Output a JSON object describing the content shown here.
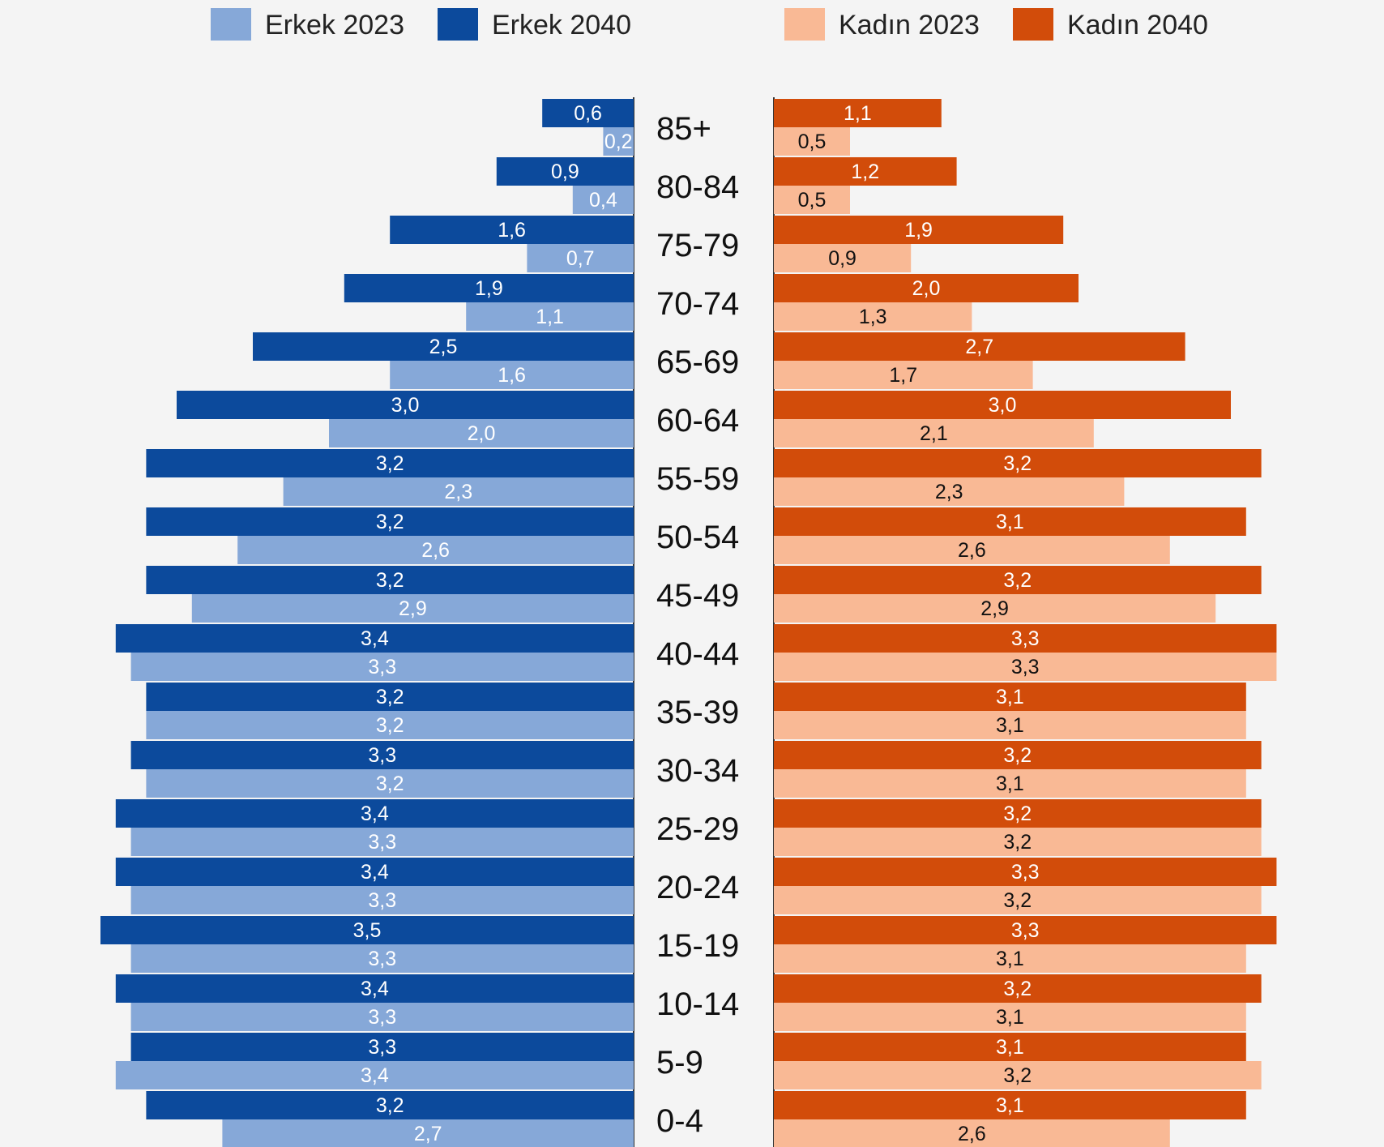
{
  "chart_data": {
    "type": "bar",
    "title": "",
    "xlabel": "",
    "ylabel": "",
    "categories": [
      "85+",
      "80-84",
      "75-79",
      "70-74",
      "65-69",
      "60-64",
      "55-59",
      "50-54",
      "45-49",
      "40-44",
      "35-39",
      "30-34",
      "25-29",
      "20-24",
      "15-19",
      "10-14",
      "5-9",
      "0-4"
    ],
    "series": [
      {
        "name": "Erkek 2040",
        "color": "#0c4a9c",
        "values": [
          0.6,
          0.9,
          1.6,
          1.9,
          2.5,
          3.0,
          3.2,
          3.2,
          3.2,
          3.4,
          3.2,
          3.3,
          3.4,
          3.4,
          3.5,
          3.4,
          3.3,
          3.2
        ]
      },
      {
        "name": "Erkek 2023",
        "color": "#86a8d8",
        "values": [
          0.2,
          0.4,
          0.7,
          1.1,
          1.6,
          2.0,
          2.3,
          2.6,
          2.9,
          3.3,
          3.2,
          3.2,
          3.3,
          3.3,
          3.3,
          3.3,
          3.4,
          2.7
        ]
      },
      {
        "name": "Kadın 2040",
        "color": "#d24c0a",
        "values": [
          1.1,
          1.2,
          1.9,
          2.0,
          2.7,
          3.0,
          3.2,
          3.1,
          3.2,
          3.3,
          3.1,
          3.2,
          3.2,
          3.3,
          3.3,
          3.2,
          3.1,
          3.1
        ]
      },
      {
        "name": "Kadın 2023",
        "color": "#f9b995",
        "values": [
          0.5,
          0.5,
          0.9,
          1.3,
          1.7,
          2.1,
          2.3,
          2.6,
          2.9,
          3.3,
          3.1,
          3.1,
          3.2,
          3.2,
          3.1,
          3.1,
          3.2,
          2.6
        ]
      }
    ],
    "legend": {
      "placement": "top",
      "items": [
        "Erkek 2023",
        "Erkek 2040",
        "Kadın 2023",
        "Kadın 2040"
      ]
    },
    "grid": false,
    "decimal_separator": ","
  }
}
